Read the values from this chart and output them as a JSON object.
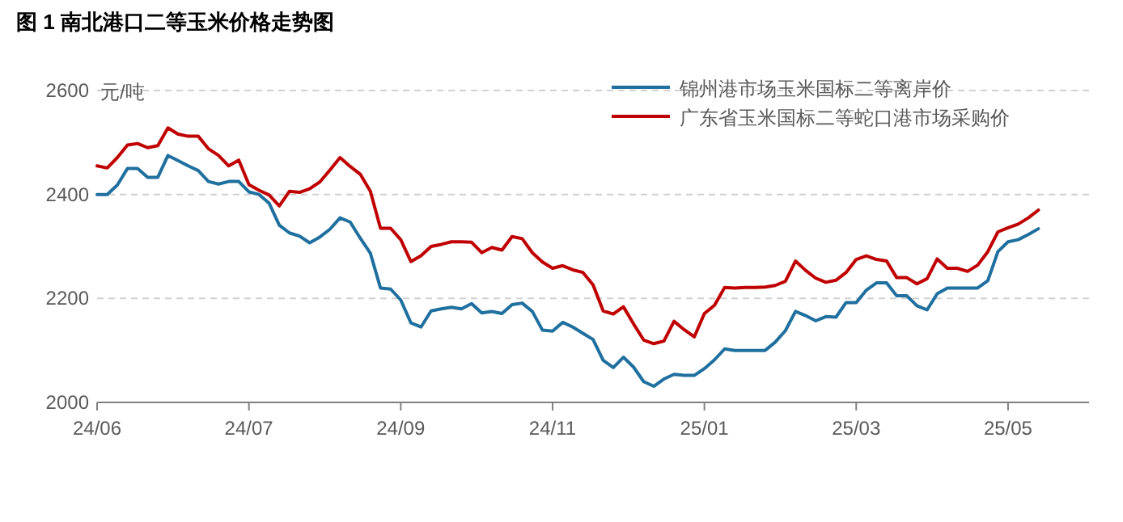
{
  "chart_data": {
    "type": "line",
    "title": "图 1  南北港口二等玉米价格走势图",
    "ylabel": "元/吨",
    "categories": [
      "24/06",
      null,
      null,
      null,
      null,
      null,
      null,
      null,
      null,
      null,
      null,
      null,
      null,
      null,
      null,
      "24/07",
      null,
      null,
      null,
      null,
      null,
      null,
      null,
      null,
      null,
      null,
      null,
      null,
      null,
      null,
      "24/09",
      null,
      null,
      null,
      null,
      null,
      null,
      null,
      null,
      null,
      null,
      null,
      null,
      null,
      null,
      "24/11",
      null,
      null,
      null,
      null,
      null,
      null,
      null,
      null,
      null,
      null,
      null,
      null,
      null,
      null,
      "25/01",
      null,
      null,
      null,
      null,
      null,
      null,
      null,
      null,
      null,
      null,
      null,
      null,
      null,
      null,
      "25/03",
      null,
      null,
      null,
      null,
      null,
      null,
      null,
      null,
      null,
      null,
      null,
      null,
      null,
      null,
      "25/05",
      null,
      null,
      null
    ],
    "ylim": [
      2000,
      2600
    ],
    "yticks": [
      2000,
      2200,
      2400,
      2600
    ],
    "grid": "y",
    "legend": "top right",
    "line_style": "solid",
    "marker": "none",
    "series": [
      {
        "name": "锦州港市场玉米国标二等离岸价",
        "color": "#1f6f9f",
        "values": [
          2400,
          2400,
          2418,
          2450,
          2450,
          2433,
          2433,
          2475,
          2465,
          2455,
          2446,
          2425,
          2420,
          2425,
          2425,
          2405,
          2400,
          2383,
          2341,
          2326,
          2320,
          2307,
          2318,
          2333,
          2355,
          2347,
          2316,
          2287,
          2220,
          2218,
          2197,
          2153,
          2145,
          2176,
          2180,
          2183,
          2180,
          2190,
          2172,
          2175,
          2171,
          2188,
          2191,
          2175,
          2139,
          2137,
          2154,
          2145,
          2133,
          2121,
          2081,
          2067,
          2087,
          2068,
          2040,
          2031,
          2045,
          2054,
          2052,
          2052,
          2065,
          2082,
          2103,
          2100,
          2100,
          2100,
          2100,
          2116,
          2138,
          2175,
          2167,
          2157,
          2165,
          2164,
          2192,
          2192,
          2216,
          2230,
          2230,
          2205,
          2205,
          2186,
          2178,
          2209,
          2220,
          2220,
          2220,
          2220,
          2234,
          2290,
          2309,
          2313,
          2323,
          2334
        ]
      },
      {
        "name": "广东省玉米国标二等蛇口港市场采购价",
        "color": "#c00000",
        "values": [
          2455,
          2451,
          2471,
          2495,
          2498,
          2490,
          2494,
          2528,
          2516,
          2512,
          2512,
          2488,
          2475,
          2455,
          2466,
          2419,
          2408,
          2399,
          2378,
          2406,
          2404,
          2411,
          2424,
          2447,
          2471,
          2454,
          2439,
          2406,
          2335,
          2335,
          2313,
          2271,
          2282,
          2300,
          2304,
          2309,
          2309,
          2308,
          2288,
          2298,
          2293,
          2319,
          2315,
          2288,
          2270,
          2258,
          2263,
          2255,
          2250,
          2226,
          2176,
          2170,
          2184,
          2151,
          2120,
          2113,
          2118,
          2156,
          2140,
          2126,
          2171,
          2187,
          2221,
          2220,
          2221,
          2221,
          2222,
          2225,
          2233,
          2272,
          2254,
          2239,
          2231,
          2235,
          2250,
          2275,
          2282,
          2275,
          2272,
          2240,
          2240,
          2228,
          2238,
          2276,
          2258,
          2258,
          2252,
          2264,
          2290,
          2328,
          2336,
          2343,
          2355,
          2370
        ]
      }
    ]
  }
}
